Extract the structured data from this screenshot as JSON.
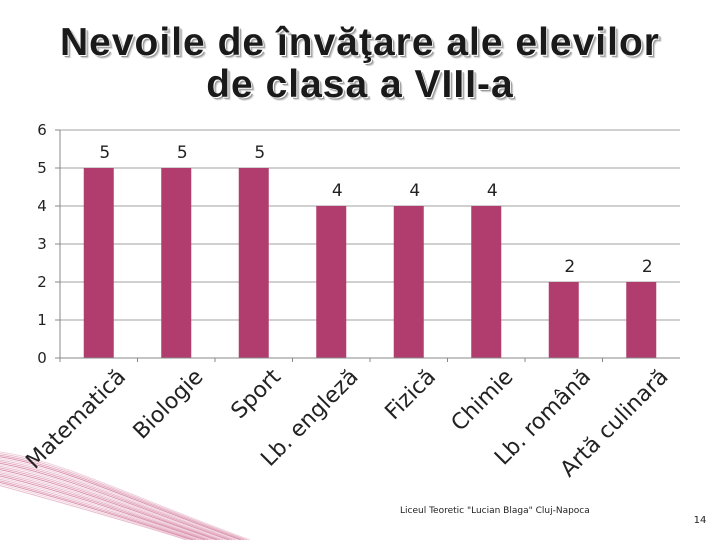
{
  "slide": {
    "title_line1": "Nevoile de învăţare ale elevilor",
    "title_line2": "de clasa a VIII-a",
    "footer": "Liceul Teoretic \"Lucian Blaga\" Cluj-Napoca",
    "page_number": "14"
  },
  "colors": {
    "bar": "#b13c6e",
    "grid": "#a0a0a0",
    "axis": "#888888",
    "decor": "#c4507a"
  },
  "chart_data": {
    "type": "bar",
    "categories": [
      "Matematică",
      "Biologie",
      "Sport",
      "Lb. engleză",
      "Fizică",
      "Chimie",
      "Lb. română",
      "Artă culinară"
    ],
    "values": [
      5,
      5,
      5,
      4,
      4,
      4,
      2,
      2
    ],
    "ylim": [
      0,
      6
    ],
    "yticks": [
      0,
      1,
      2,
      3,
      4,
      5,
      6
    ],
    "grid": true,
    "data_labels": true,
    "legend": "none"
  }
}
